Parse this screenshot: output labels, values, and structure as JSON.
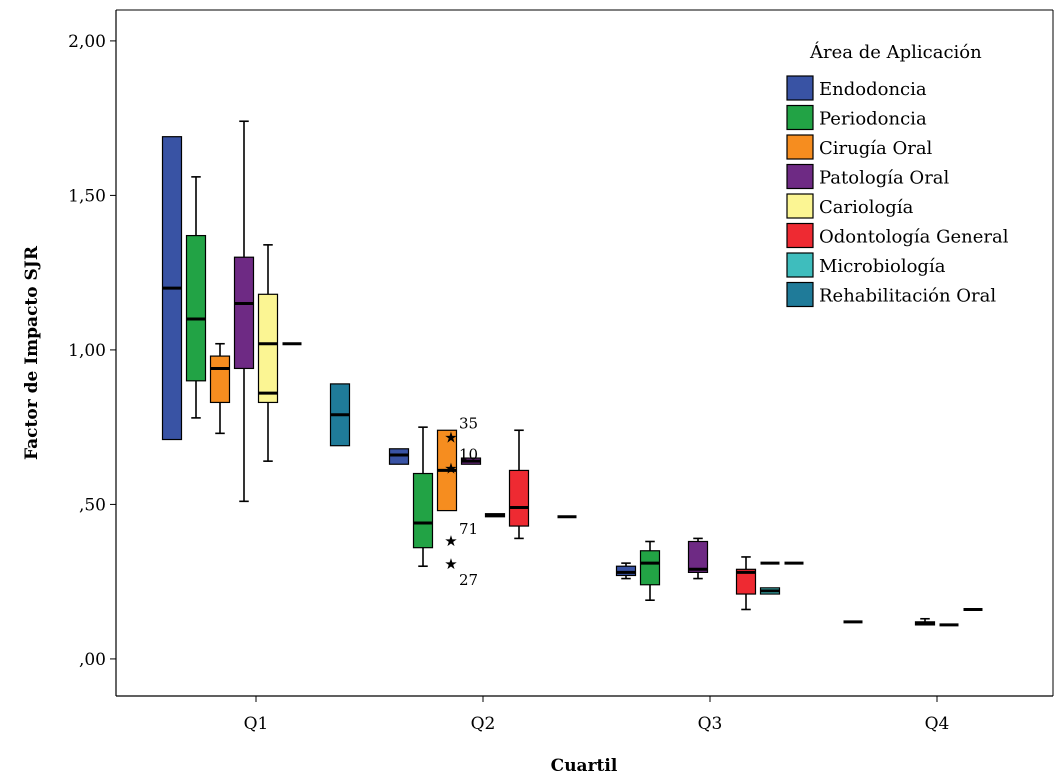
{
  "chart_data": {
    "type": "boxplot",
    "title": "",
    "xlabel": "Cuartil",
    "ylabel": "Factor de Impacto SJR",
    "ylim": [
      -0.12,
      2.1
    ],
    "y_ticks": [
      {
        "value": 0.0,
        "label": ",00"
      },
      {
        "value": 0.5,
        "label": ",50"
      },
      {
        "value": 1.0,
        "label": "1,00"
      },
      {
        "value": 1.5,
        "label": "1,50"
      },
      {
        "value": 2.0,
        "label": "2,00"
      }
    ],
    "categories": [
      "Q1",
      "Q2",
      "Q3",
      "Q4"
    ],
    "legend": {
      "title": "Área de Aplicación",
      "position": "top-right"
    },
    "grid": false,
    "series": [
      {
        "name": "Endodoncia",
        "color": "#3953a4",
        "boxes": [
          {
            "category": "Q1",
            "min": 0.71,
            "q1": 0.71,
            "median": 1.2,
            "q3": 1.69,
            "max": 1.69
          },
          {
            "category": "Q2",
            "min": 0.63,
            "q1": 0.63,
            "median": 0.66,
            "q3": 0.68,
            "max": 0.68
          },
          {
            "category": "Q3",
            "min": 0.26,
            "q1": 0.27,
            "median": 0.28,
            "q3": 0.3,
            "max": 0.31
          }
        ]
      },
      {
        "name": "Periodoncia",
        "color": "#22a345",
        "boxes": [
          {
            "category": "Q1",
            "min": 0.78,
            "q1": 0.9,
            "median": 1.1,
            "q3": 1.37,
            "max": 1.56
          },
          {
            "category": "Q2",
            "min": 0.3,
            "q1": 0.36,
            "median": 0.44,
            "q3": 0.6,
            "max": 0.75
          },
          {
            "category": "Q3",
            "min": 0.19,
            "q1": 0.24,
            "median": 0.31,
            "q3": 0.35,
            "max": 0.38
          }
        ]
      },
      {
        "name": "Cirugía Oral",
        "color": "#f68d1f",
        "boxes": [
          {
            "category": "Q1",
            "min": 0.73,
            "q1": 0.83,
            "median": 0.94,
            "q3": 0.98,
            "max": 1.02
          },
          {
            "category": "Q2",
            "min": 0.48,
            "q1": 0.48,
            "median": 0.61,
            "q3": 0.74,
            "max": 0.74
          }
        ]
      },
      {
        "name": "Patología Oral",
        "color": "#6e2a84",
        "boxes": [
          {
            "category": "Q1",
            "min": 0.51,
            "q1": 0.94,
            "median": 1.15,
            "q3": 1.3,
            "max": 1.74
          },
          {
            "category": "Q2",
            "min": 0.63,
            "q1": 0.63,
            "median": 0.64,
            "q3": 0.65,
            "max": 0.65
          },
          {
            "category": "Q3",
            "min": 0.26,
            "q1": 0.28,
            "median": 0.29,
            "q3": 0.38,
            "max": 0.39
          },
          {
            "category": "Q4",
            "min": 0.11,
            "q1": 0.11,
            "median": 0.115,
            "q3": 0.12,
            "max": 0.13
          }
        ]
      },
      {
        "name": "Cariología",
        "color": "#fbf593",
        "boxes": [
          {
            "category": "Q1",
            "min": 0.64,
            "q1": 0.83,
            "median": 1.02,
            "q3": 1.18,
            "max": 1.34
          },
          {
            "category": "Q2",
            "min": 0.46,
            "q1": 0.46,
            "median": 0.465,
            "q3": 0.47,
            "max": 0.47
          }
        ]
      },
      {
        "name": "Odontología General",
        "color": "#ee2a32",
        "boxes": [
          {
            "category": "Q2",
            "min": 0.39,
            "q1": 0.43,
            "median": 0.49,
            "q3": 0.61,
            "max": 0.74
          },
          {
            "category": "Q3",
            "min": 0.16,
            "q1": 0.21,
            "median": 0.28,
            "q3": 0.29,
            "max": 0.33
          }
        ]
      },
      {
        "name": "Microbiología",
        "color": "#3ebdbd",
        "boxes": [
          {
            "category": "Q3",
            "min": 0.21,
            "q1": 0.21,
            "median": 0.22,
            "q3": 0.23,
            "max": 0.23
          }
        ]
      },
      {
        "name": "Rehabilitación Oral",
        "color": "#1f7b99",
        "boxes": [
          {
            "category": "Q1",
            "min": 0.69,
            "q1": 0.69,
            "median": 0.79,
            "q3": 0.89,
            "max": 0.89
          }
        ]
      }
    ],
    "single_values": [
      {
        "category": "Q1",
        "series": "Cariología",
        "value": 0.86
      },
      {
        "category": "Q1",
        "series": "Odontología General",
        "value": 1.02
      },
      {
        "category": "Q2",
        "series": "Rehabilitación Oral",
        "value": 0.46
      },
      {
        "category": "Q3",
        "series": "Microbiología",
        "value": 0.31
      },
      {
        "category": "Q3",
        "series": "Rehabilitación Oral",
        "value": 0.31
      },
      {
        "category": "Q4",
        "series": "Endodoncia",
        "value": 0.12
      },
      {
        "category": "Q4",
        "series": "Cariología",
        "value": 0.11
      },
      {
        "category": "Q4",
        "series": "Odontología General",
        "value": 0.16
      }
    ],
    "outliers": [
      {
        "category": "Q2",
        "series": "Patología Oral",
        "value": 0.72,
        "label": "35"
      },
      {
        "category": "Q2",
        "series": "Patología Oral",
        "value": 0.62,
        "label": "10"
      },
      {
        "category": "Q2",
        "series": "Patología Oral",
        "value": 0.385,
        "label": "71"
      },
      {
        "category": "Q2",
        "series": "Patología Oral",
        "value": 0.31,
        "label": "27"
      }
    ]
  }
}
